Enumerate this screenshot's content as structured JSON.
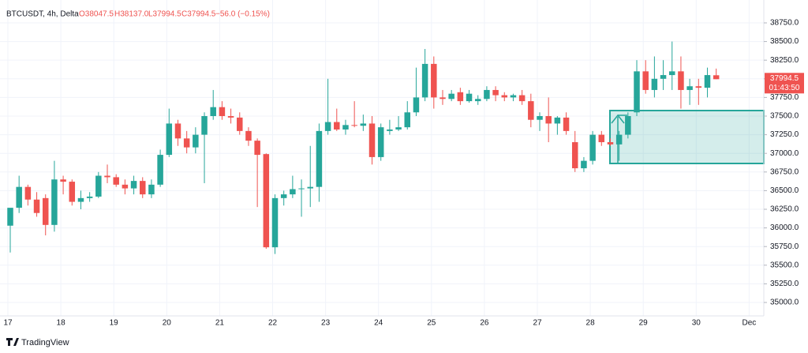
{
  "chart_data": {
    "type": "candlestick",
    "header": {
      "symbol": "BTCUSDT, 4h, Delta",
      "open": "O38047.5",
      "high": "H38137.0",
      "low": "L37994.5",
      "close": "C37994.5",
      "change": "−56.0 (−0.15%)"
    },
    "last_price_label": "37994.5",
    "countdown": "01:43:50",
    "footer": "TradingView",
    "x_labels": [
      "17",
      "18",
      "19",
      "20",
      "21",
      "22",
      "23",
      "24",
      "25",
      "26",
      "27",
      "28",
      "29",
      "30",
      "Dec"
    ],
    "up_color": "#26a69a",
    "down_color": "#ef5350",
    "ylim": [
      34820,
      39057
    ],
    "yticks": [
      {
        "value": 35000,
        "label": "35000.0"
      },
      {
        "value": 35250,
        "label": "35250.0"
      },
      {
        "value": 35500,
        "label": "35500.0"
      },
      {
        "value": 35750,
        "label": "35750.0"
      },
      {
        "value": 36000,
        "label": "36000.0"
      },
      {
        "value": 36250,
        "label": "36250.0"
      },
      {
        "value": 36500,
        "label": "36500.0"
      },
      {
        "value": 36750,
        "label": "36750.0"
      },
      {
        "value": 37000,
        "label": "37000.0"
      },
      {
        "value": 37250,
        "label": "37250.0"
      },
      {
        "value": 37500,
        "label": "37500.0"
      },
      {
        "value": 37750,
        "label": "37750.0"
      },
      {
        "value": 38000,
        "label": "38000.0"
      },
      {
        "value": 38250,
        "label": "38250.0"
      },
      {
        "value": 38500,
        "label": "38500.0"
      },
      {
        "value": 38750,
        "label": "38750.0"
      }
    ],
    "ohlc": [
      [
        36030,
        36250,
        35670,
        36270
      ],
      [
        36270,
        36700,
        36200,
        36550
      ],
      [
        36550,
        36580,
        36300,
        36380
      ],
      [
        36380,
        36480,
        36150,
        36200
      ],
      [
        36400,
        36450,
        35900,
        36040
      ],
      [
        36040,
        36900,
        35950,
        36650
      ],
      [
        36650,
        36700,
        36450,
        36620
      ],
      [
        36620,
        36650,
        36300,
        36350
      ],
      [
        36350,
        36500,
        36250,
        36400
      ],
      [
        36400,
        36480,
        36350,
        36420
      ],
      [
        36420,
        36750,
        36400,
        36700
      ],
      [
        36700,
        36850,
        36600,
        36680
      ],
      [
        36680,
        36720,
        36550,
        36580
      ],
      [
        36580,
        36650,
        36450,
        36530
      ],
      [
        36530,
        36700,
        36450,
        36630
      ],
      [
        36630,
        36680,
        36400,
        36450
      ],
      [
        36450,
        36650,
        36400,
        36580
      ],
      [
        36580,
        37050,
        36550,
        36980
      ],
      [
        36980,
        37600,
        36950,
        37400
      ],
      [
        37400,
        37450,
        37100,
        37200
      ],
      [
        37200,
        37300,
        37000,
        37080
      ],
      [
        37080,
        37350,
        37000,
        37250
      ],
      [
        37250,
        37550,
        36600,
        37500
      ],
      [
        37500,
        37850,
        37450,
        37620
      ],
      [
        37620,
        37700,
        37450,
        37500
      ],
      [
        37500,
        37600,
        37400,
        37480
      ],
      [
        37480,
        37550,
        37250,
        37300
      ],
      [
        37300,
        37350,
        37100,
        37170
      ],
      [
        37170,
        37200,
        36280,
        36980
      ],
      [
        36990,
        37000,
        35720,
        35740
      ],
      [
        35740,
        36450,
        35650,
        36400
      ],
      [
        36400,
        36500,
        36300,
        36450
      ],
      [
        36450,
        36700,
        36400,
        36520
      ],
      [
        36520,
        36650,
        36150,
        36530
      ],
      [
        36530,
        37100,
        36280,
        36550
      ],
      [
        36550,
        37400,
        36350,
        37300
      ],
      [
        37300,
        38000,
        37250,
        37420
      ],
      [
        37420,
        37600,
        37300,
        37320
      ],
      [
        37320,
        37450,
        37250,
        37380
      ],
      [
        37380,
        37700,
        37350,
        37370
      ],
      [
        37370,
        37520,
        37300,
        37400
      ],
      [
        37400,
        37500,
        36850,
        36950
      ],
      [
        36950,
        37400,
        36900,
        37350
      ],
      [
        37300,
        37450,
        37250,
        37320
      ],
      [
        37320,
        37500,
        37300,
        37350
      ],
      [
        37350,
        37700,
        37320,
        37550
      ],
      [
        37550,
        38150,
        37500,
        37750
      ],
      [
        37750,
        38400,
        37700,
        38200
      ],
      [
        38200,
        38300,
        37600,
        37750
      ],
      [
        37750,
        37850,
        37650,
        37730
      ],
      [
        37730,
        37850,
        37700,
        37800
      ],
      [
        37820,
        37880,
        37650,
        37700
      ],
      [
        37700,
        37850,
        37680,
        37800
      ],
      [
        37700,
        37780,
        37650,
        37730
      ],
      [
        37730,
        37900,
        37700,
        37850
      ],
      [
        37850,
        37900,
        37700,
        37780
      ],
      [
        37780,
        37820,
        37700,
        37750
      ],
      [
        37750,
        37800,
        37700,
        37780
      ],
      [
        37780,
        37850,
        37650,
        37700
      ],
      [
        37700,
        37800,
        37350,
        37450
      ],
      [
        37450,
        37550,
        37300,
        37500
      ],
      [
        37500,
        37750,
        37150,
        37400
      ],
      [
        37400,
        37500,
        37250,
        37480
      ],
      [
        37480,
        37550,
        37250,
        37300
      ],
      [
        37150,
        37300,
        36750,
        36800
      ],
      [
        36800,
        36950,
        36750,
        36900
      ],
      [
        36900,
        37300,
        36850,
        37250
      ],
      [
        37250,
        37300,
        37100,
        37150
      ],
      [
        37150,
        37200,
        37100,
        37120
      ],
      [
        37120,
        37300,
        36900,
        37250
      ],
      [
        37250,
        37550,
        37200,
        37500
      ],
      [
        37550,
        38250,
        37500,
        38100
      ],
      [
        38100,
        38250,
        37800,
        37850
      ],
      [
        37850,
        38300,
        37750,
        38000
      ],
      [
        38000,
        38250,
        37850,
        38050
      ],
      [
        38050,
        38500,
        37850,
        38100
      ],
      [
        38100,
        38300,
        37600,
        37850
      ],
      [
        37850,
        38000,
        37650,
        37900
      ],
      [
        37900,
        38000,
        37650,
        37880
      ],
      [
        37880,
        38150,
        37750,
        38050
      ],
      [
        38047.5,
        38137,
        37994.5,
        37994.5
      ]
    ]
  }
}
